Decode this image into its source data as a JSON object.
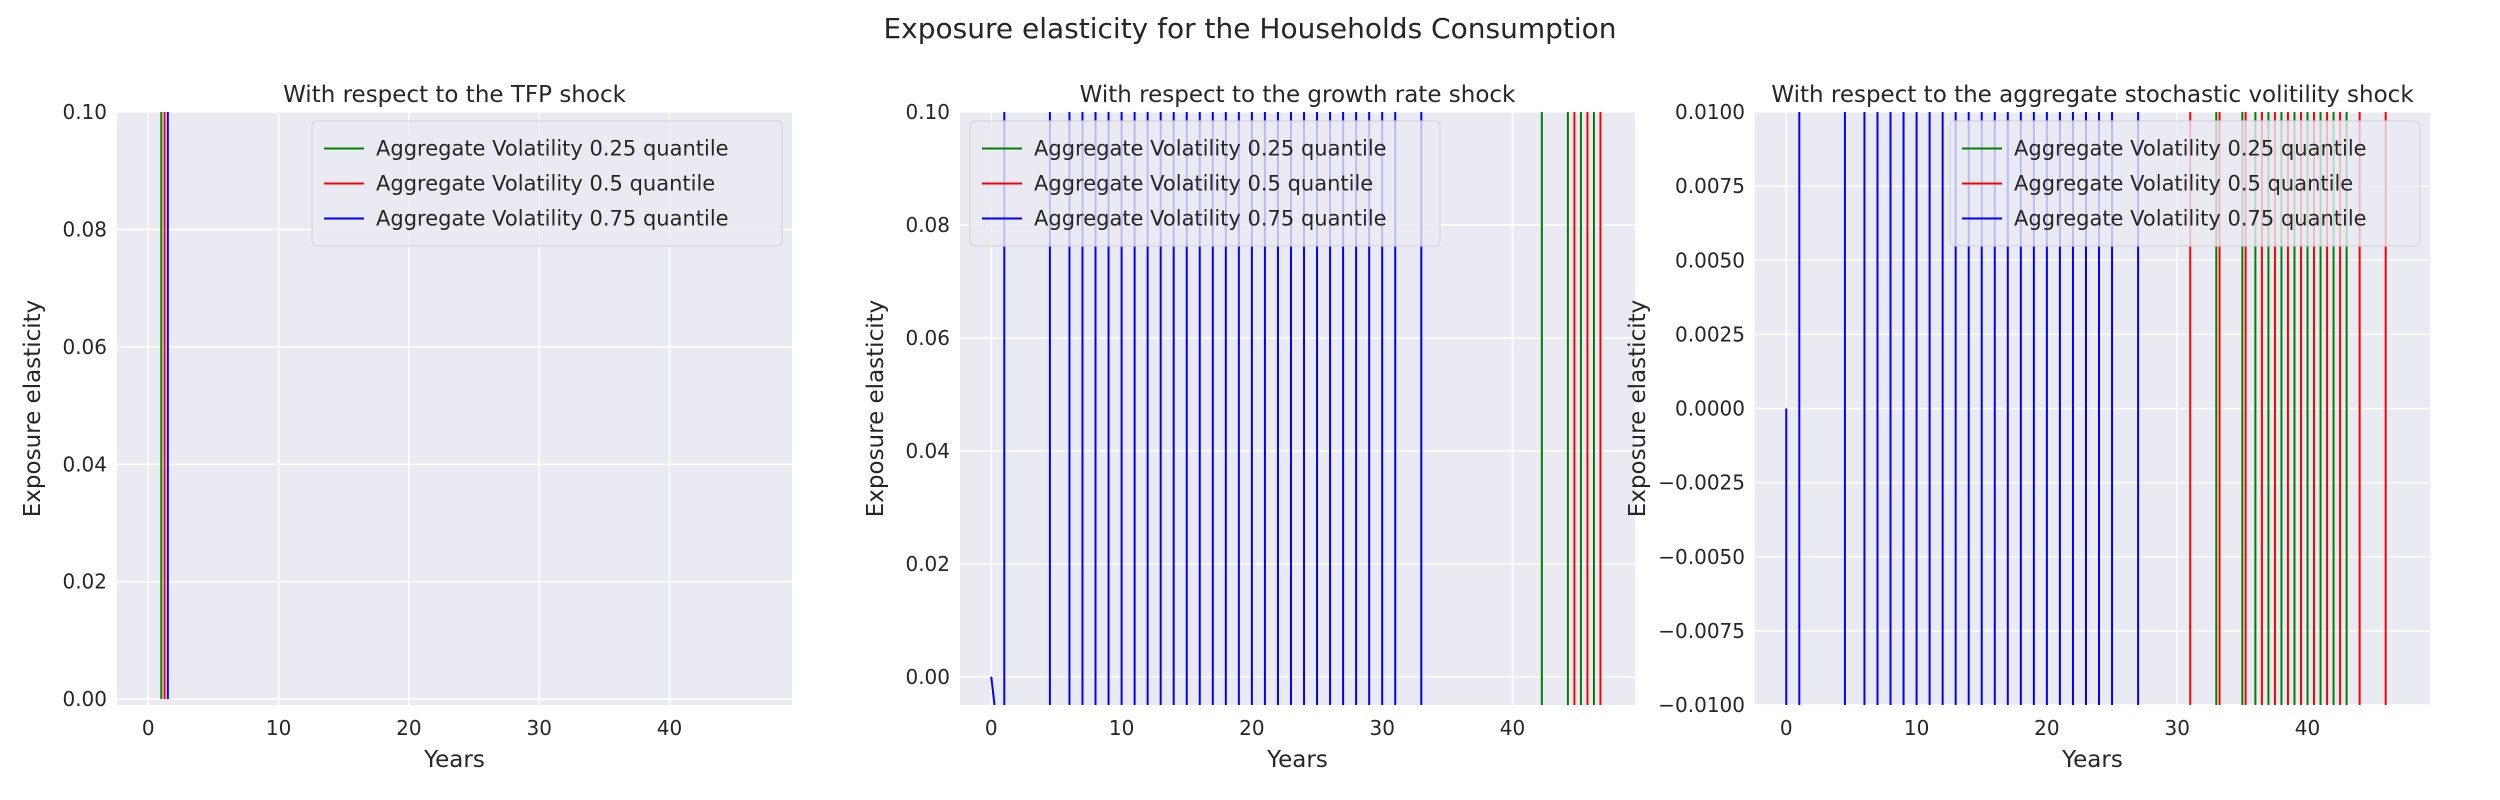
{
  "figure_title": "Exposure elasticity for the Households Consumption",
  "colors": {
    "background": "#eaeaf2",
    "grid": "#ffffff",
    "series": [
      "#008000",
      "#ff0000",
      "#0000ff"
    ]
  },
  "chart_data": [
    {
      "type": "line",
      "title": "With respect to the TFP shock",
      "xlabel": "Years",
      "ylabel": "Exposure elasticity",
      "xlim": [
        -2.4,
        49.4
      ],
      "ylim": [
        -0.001,
        0.1
      ],
      "xticks": [
        0,
        10,
        20,
        30,
        40
      ],
      "xtick_labels": [
        "0",
        "10",
        "20",
        "30",
        "40"
      ],
      "yticks": [
        0.0,
        0.02,
        0.04,
        0.06,
        0.08,
        0.1
      ],
      "ytick_labels": [
        "0.00",
        "0.02",
        "0.04",
        "0.06",
        "0.08",
        "0.10"
      ],
      "grid": true,
      "legend": "top-right",
      "series": [
        {
          "name": "Aggregate Volatility 0.25 quantile",
          "spikes": [
            1.0
          ],
          "spike_bottom": 0.0,
          "spike_top": 0.1
        },
        {
          "name": "Aggregate Volatility 0.5 quantile",
          "spikes": [
            1.25
          ],
          "spike_bottom": 0.0,
          "spike_top": 0.1
        },
        {
          "name": "Aggregate Volatility 0.75 quantile",
          "spikes": [
            1.5
          ],
          "spike_bottom": 0.0,
          "spike_top": 0.1
        }
      ]
    },
    {
      "type": "line",
      "title": "With respect to the growth rate shock",
      "xlabel": "Years",
      "ylabel": "Exposure elasticity",
      "xlim": [
        -2.4,
        49.4
      ],
      "ylim": [
        -0.005,
        0.1
      ],
      "xticks": [
        0,
        10,
        20,
        30,
        40
      ],
      "xtick_labels": [
        "0",
        "10",
        "20",
        "30",
        "40"
      ],
      "yticks": [
        0.0,
        0.02,
        0.04,
        0.06,
        0.08,
        0.1
      ],
      "ytick_labels": [
        "0.00",
        "0.02",
        "0.04",
        "0.06",
        "0.08",
        "0.10"
      ],
      "grid": true,
      "legend": "top-left",
      "series": [
        {
          "name": "Aggregate Volatility 0.25 quantile",
          "spikes": [
            42.25,
            44.25,
            45.25,
            46.25
          ],
          "spike_bottom": -0.005,
          "spike_top": 0.1
        },
        {
          "name": "Aggregate Volatility 0.5 quantile",
          "spikes": [
            44.75,
            45.75,
            46.75
          ],
          "spike_bottom": -0.005,
          "spike_top": 0.1
        },
        {
          "name": "Aggregate Volatility 0.75 quantile",
          "spikes": [
            1.0,
            4.5,
            6.0,
            7.0,
            8.0,
            9.0,
            10.0,
            11.0,
            12.0,
            13.0,
            14.0,
            15.0,
            16.0,
            17.0,
            18.0,
            19.0,
            20.0,
            21.0,
            22.0,
            23.0,
            24.0,
            25.0,
            26.0,
            27.0,
            28.0,
            29.0,
            30.0,
            31.0,
            33.0
          ],
          "spike_bottom": -0.005,
          "spike_top": 0.1,
          "start_segment": [
            [
              0,
              0.0
            ],
            [
              0.25,
              -0.005
            ]
          ]
        }
      ]
    },
    {
      "type": "line",
      "title": "With respect to the aggregate stochastic volitility shock",
      "xlabel": "Years",
      "ylabel": "Exposure elasticity",
      "xlim": [
        -2.4,
        49.4
      ],
      "ylim": [
        -0.01,
        0.01
      ],
      "xticks": [
        0,
        10,
        20,
        30,
        40
      ],
      "xtick_labels": [
        "0",
        "10",
        "20",
        "30",
        "40"
      ],
      "yticks": [
        -0.01,
        -0.0075,
        -0.005,
        -0.0025,
        0.0,
        0.0025,
        0.005,
        0.0075,
        0.01
      ],
      "ytick_labels": [
        "−0.0100",
        "−0.0075",
        "−0.0050",
        "−0.0025",
        "0.0000",
        "0.0025",
        "0.0050",
        "0.0075",
        "0.0100"
      ],
      "grid": true,
      "legend": "top-right",
      "series": [
        {
          "name": "Aggregate Volatility 0.25 quantile",
          "spikes": [
            33.0,
            35.0,
            36.0,
            37.0,
            38.0,
            39.0,
            40.0,
            41.0,
            42.0,
            43.0
          ],
          "spike_bottom": -0.01,
          "spike_top": 0.01
        },
        {
          "name": "Aggregate Volatility 0.5 quantile",
          "spikes": [
            31.0,
            33.25,
            35.25,
            36.5,
            37.5,
            38.5,
            39.5,
            40.5,
            41.5,
            42.5,
            44.0,
            46.0
          ],
          "spike_bottom": -0.01,
          "spike_top": 0.01
        },
        {
          "name": "Aggregate Volatility 0.75 quantile",
          "spikes": [
            1.0,
            4.5,
            6.0,
            7.0,
            8.0,
            9.0,
            10.0,
            11.0,
            12.0,
            13.0,
            14.0,
            15.0,
            16.0,
            17.0,
            18.0,
            19.0,
            20.0,
            21.0,
            22.0,
            23.0,
            24.0,
            25.0,
            27.0
          ],
          "spike_bottom": -0.01,
          "spike_top": 0.01,
          "start_segment": [
            [
              0,
              0.0
            ],
            [
              0,
              -0.01
            ]
          ]
        }
      ]
    }
  ]
}
